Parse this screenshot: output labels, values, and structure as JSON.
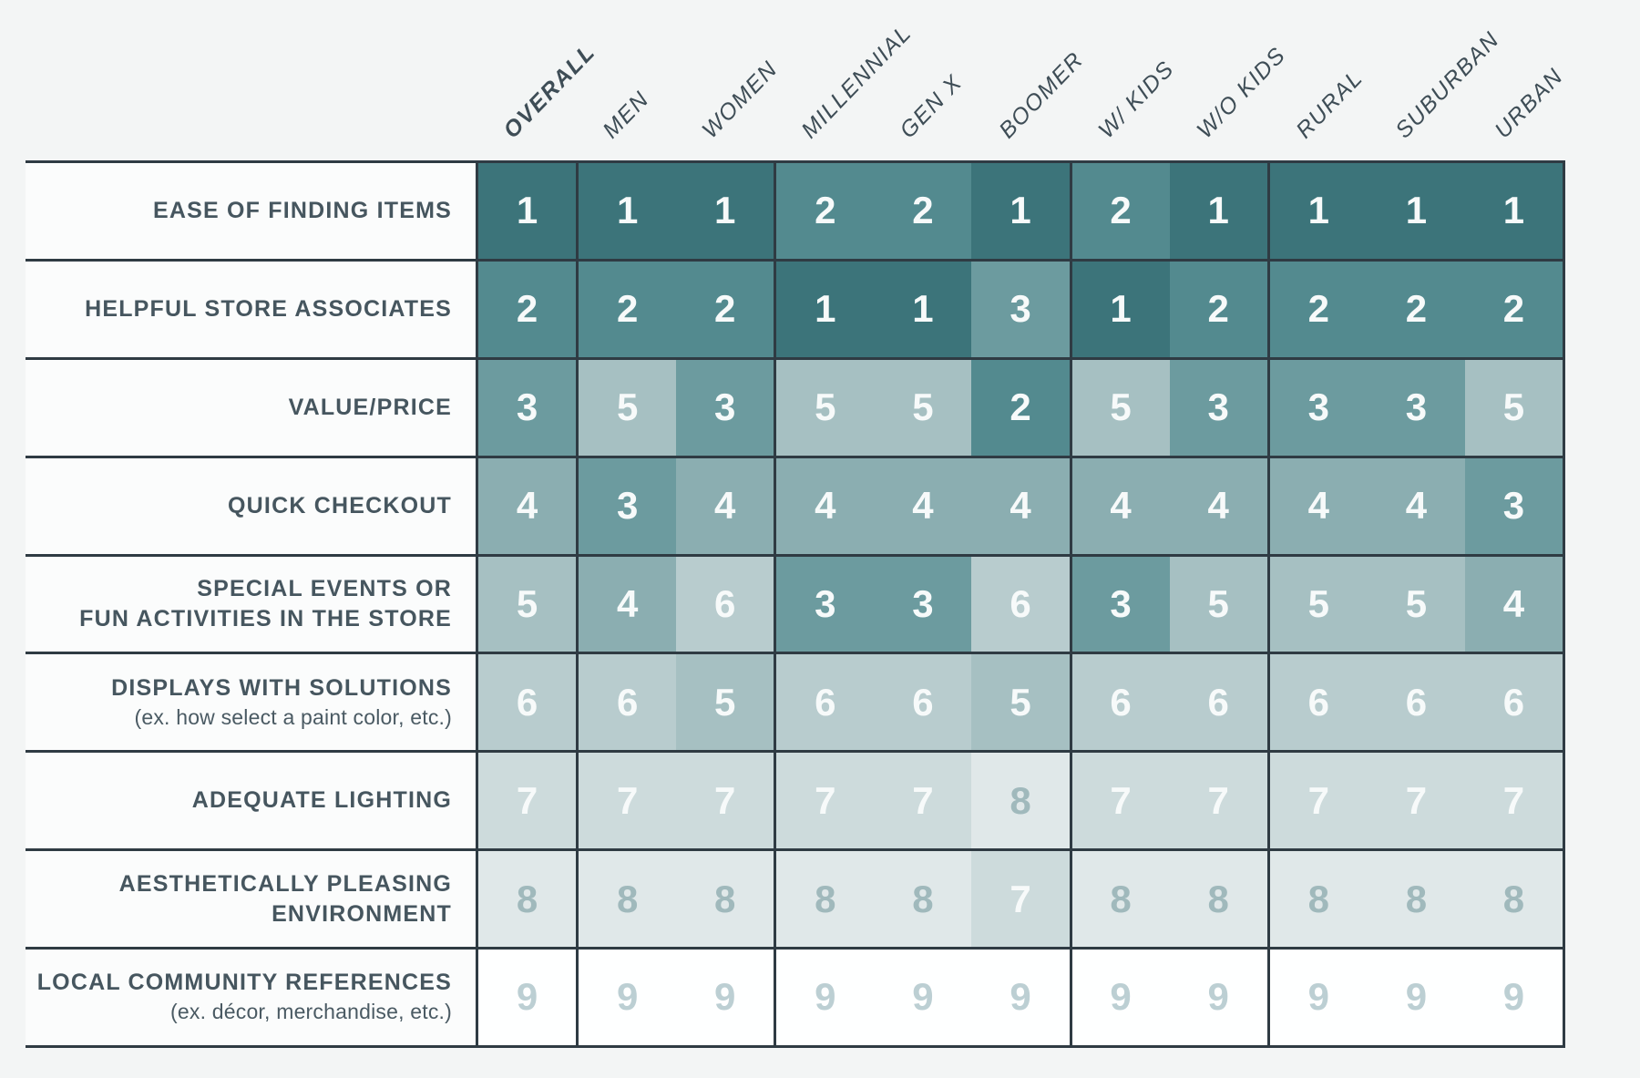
{
  "chart_data": {
    "type": "heatmap",
    "columns": [
      "OVERALL",
      "MEN",
      "WOMEN",
      "MILLENNIAL",
      "GEN X",
      "BOOMER",
      "W/ KIDS",
      "W/O KIDS",
      "RURAL",
      "SUBURBAN",
      "URBAN"
    ],
    "emphasized_column": "OVERALL",
    "column_groups": [
      [
        "OVERALL"
      ],
      [
        "MEN",
        "WOMEN"
      ],
      [
        "MILLENNIAL",
        "GEN X",
        "BOOMER"
      ],
      [
        "W/ KIDS",
        "W/O KIDS"
      ],
      [
        "RURAL",
        "SUBURBAN",
        "URBAN"
      ]
    ],
    "value_range": [
      1,
      9
    ],
    "value_meaning": "rank shown in each cell; 1 = darkest teal, 9 = white",
    "rows": [
      {
        "label_lines": [
          "EASE OF FINDING ITEMS"
        ],
        "sublabel": "",
        "values": [
          1,
          1,
          1,
          2,
          2,
          1,
          2,
          1,
          1,
          1,
          1
        ]
      },
      {
        "label_lines": [
          "HELPFUL STORE ASSOCIATES"
        ],
        "sublabel": "",
        "values": [
          2,
          2,
          2,
          1,
          1,
          3,
          1,
          2,
          2,
          2,
          2
        ]
      },
      {
        "label_lines": [
          "VALUE/PRICE"
        ],
        "sublabel": "",
        "values": [
          3,
          5,
          3,
          5,
          5,
          2,
          5,
          3,
          3,
          3,
          5
        ]
      },
      {
        "label_lines": [
          "QUICK CHECKOUT"
        ],
        "sublabel": "",
        "values": [
          4,
          3,
          4,
          4,
          4,
          4,
          4,
          4,
          4,
          4,
          3
        ]
      },
      {
        "label_lines": [
          "SPECIAL EVENTS OR",
          "FUN ACTIVITIES IN THE STORE"
        ],
        "sublabel": "",
        "values": [
          5,
          4,
          6,
          3,
          3,
          6,
          3,
          5,
          5,
          5,
          4
        ]
      },
      {
        "label_lines": [
          "DISPLAYS WITH SOLUTIONS"
        ],
        "sublabel": "(ex. how select a paint color, etc.)",
        "values": [
          6,
          6,
          5,
          6,
          6,
          5,
          6,
          6,
          6,
          6,
          6
        ]
      },
      {
        "label_lines": [
          "ADEQUATE LIGHTING"
        ],
        "sublabel": "",
        "values": [
          7,
          7,
          7,
          7,
          7,
          8,
          7,
          7,
          7,
          7,
          7
        ]
      },
      {
        "label_lines": [
          "AESTHETICALLY PLEASING",
          "ENVIRONMENT"
        ],
        "sublabel": "",
        "values": [
          8,
          8,
          8,
          8,
          8,
          7,
          8,
          8,
          8,
          8,
          8
        ]
      },
      {
        "label_lines": [
          "LOCAL COMMUNITY REFERENCES"
        ],
        "sublabel": "(ex. décor, merchandise, etc.)",
        "values": [
          9,
          9,
          9,
          9,
          9,
          9,
          9,
          9,
          9,
          9,
          9
        ]
      }
    ],
    "rank_colors": {
      "1": "#3C747A",
      "2": "#538A8F",
      "3": "#6C9B9F",
      "4": "#8BAEB1",
      "5": "#A6C0C2",
      "6": "#B8CCCE",
      "7": "#CDDBDC",
      "8": "#E0E8E9",
      "9": "#FEFFFF"
    },
    "rank_text_colors": {
      "default": "#F7FAFA",
      "8": "#A0B9BC",
      "9": "#BCCFD3"
    },
    "grid_border_color": "#2F3B43",
    "header_text_color": "#3E4D56",
    "row_label_color": "#46565F",
    "background_color": "#F3F5F5"
  }
}
